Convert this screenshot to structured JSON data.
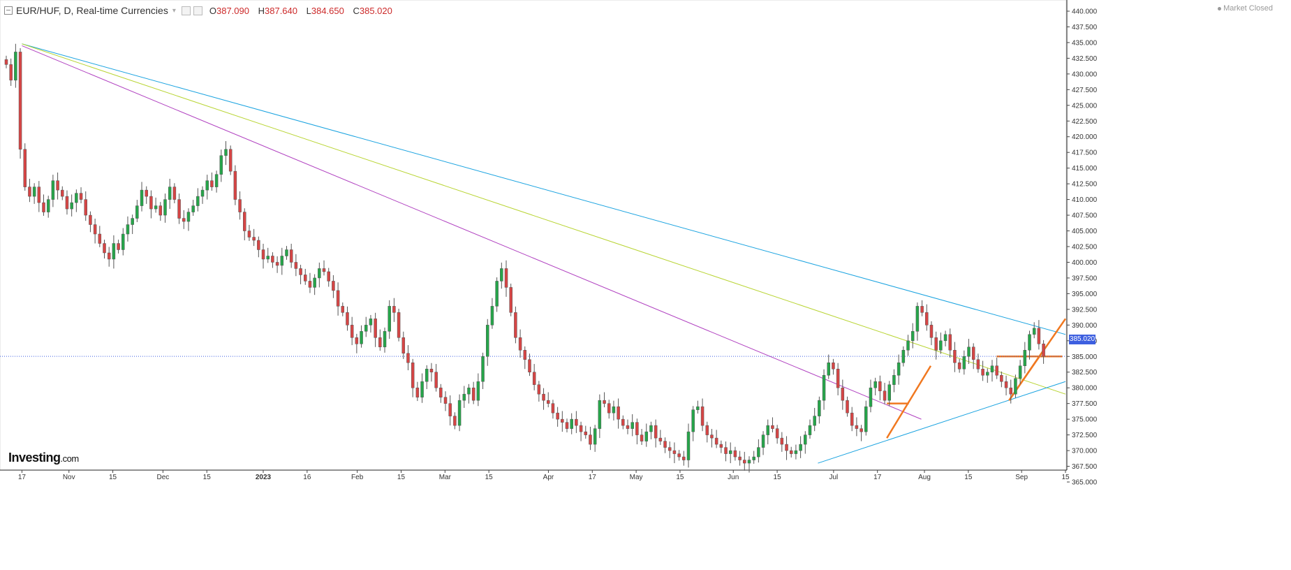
{
  "header": {
    "title": "EUR/HUF, D, Real-time Currencies",
    "ohlc": [
      {
        "key": "O",
        "value": "387.090"
      },
      {
        "key": "H",
        "value": "387.640"
      },
      {
        "key": "L",
        "value": "384.650"
      },
      {
        "key": "C",
        "value": "385.020"
      }
    ],
    "status": "Market Closed"
  },
  "brand": {
    "name": "Investing",
    "suffix": ".com"
  },
  "colors": {
    "up": "#26a54a",
    "down": "#d64545",
    "blue_line": "#1aa3e0",
    "yellow_line": "#b8d432",
    "purple_line": "#b040c0",
    "orange": "#f07820",
    "last_price": "#3d5fe0"
  },
  "chart_data": {
    "type": "candlestick",
    "title": "EUR/HUF, D, Real-time Currencies",
    "ylim": [
      365.0,
      440.0
    ],
    "y_ticks": [
      "365.000",
      "367.500",
      "370.000",
      "372.500",
      "375.000",
      "377.500",
      "380.000",
      "382.500",
      "385.000",
      "387.500",
      "390.000",
      "392.500",
      "395.000",
      "397.500",
      "400.000",
      "402.500",
      "405.000",
      "407.500",
      "410.000",
      "412.500",
      "415.000",
      "417.500",
      "420.000",
      "422.500",
      "425.000",
      "427.500",
      "430.000",
      "432.500",
      "435.000",
      "437.500",
      "440.000"
    ],
    "x_ticks": [
      {
        "label": "17",
        "date": "2022-10-17"
      },
      {
        "label": "Nov",
        "date": "2022-11-01"
      },
      {
        "label": "15",
        "date": "2022-11-15"
      },
      {
        "label": "Dec",
        "date": "2022-12-01"
      },
      {
        "label": "15",
        "date": "2022-12-15"
      },
      {
        "label": "2023",
        "date": "2023-01-02"
      },
      {
        "label": "16",
        "date": "2023-01-16"
      },
      {
        "label": "Feb",
        "date": "2023-02-01"
      },
      {
        "label": "15",
        "date": "2023-02-15"
      },
      {
        "label": "Mar",
        "date": "2023-03-01"
      },
      {
        "label": "15",
        "date": "2023-03-15"
      },
      {
        "label": "Apr",
        "date": "2023-04-03"
      },
      {
        "label": "17",
        "date": "2023-04-17"
      },
      {
        "label": "May",
        "date": "2023-05-01"
      },
      {
        "label": "15",
        "date": "2023-05-15"
      },
      {
        "label": "Jun",
        "date": "2023-06-01"
      },
      {
        "label": "15",
        "date": "2023-06-15"
      },
      {
        "label": "Jul",
        "date": "2023-07-03"
      },
      {
        "label": "17",
        "date": "2023-07-17"
      },
      {
        "label": "Aug",
        "date": "2023-08-01"
      },
      {
        "label": "15",
        "date": "2023-08-15"
      },
      {
        "label": "Sep",
        "date": "2023-09-01"
      },
      {
        "label": "15",
        "date": "2023-09-15"
      }
    ],
    "last_price": 385.02,
    "last_price_label": "385.020",
    "candles_note": "daily OHLC closes estimated from chart",
    "closes": [
      431.5,
      429.0,
      433.5,
      418.0,
      412.0,
      410.5,
      412.0,
      409.5,
      408.0,
      410.0,
      413.0,
      411.5,
      410.5,
      408.5,
      409.5,
      411.0,
      410.0,
      407.5,
      406.0,
      404.5,
      403.0,
      401.5,
      400.5,
      403.0,
      402.0,
      404.5,
      406.0,
      407.0,
      409.0,
      411.5,
      410.5,
      408.5,
      409.0,
      407.5,
      410.0,
      412.0,
      410.0,
      407.0,
      406.5,
      408.0,
      409.0,
      410.5,
      411.5,
      413.0,
      412.0,
      414.0,
      417.0,
      418.0,
      414.5,
      410.0,
      408.0,
      405.0,
      404.0,
      403.5,
      402.0,
      400.5,
      401.0,
      400.0,
      399.5,
      401.0,
      402.0,
      400.0,
      399.0,
      398.0,
      397.0,
      396.0,
      397.5,
      399.0,
      398.5,
      397.0,
      395.5,
      393.0,
      392.0,
      390.0,
      388.0,
      387.0,
      389.0,
      390.0,
      391.0,
      388.0,
      386.5,
      389.0,
      393.0,
      392.0,
      388.0,
      385.5,
      384.0,
      380.0,
      378.5,
      381.0,
      383.0,
      382.5,
      380.0,
      378.5,
      377.5,
      375.5,
      374.0,
      378.0,
      379.0,
      380.0,
      378.0,
      381.0,
      385.0,
      390.0,
      393.0,
      397.0,
      399.0,
      396.0,
      392.0,
      388.0,
      386.0,
      384.5,
      382.5,
      380.5,
      379.0,
      378.0,
      377.5,
      376.0,
      375.0,
      374.5,
      373.5,
      375.0,
      374.0,
      373.0,
      372.5,
      371.0,
      373.5,
      378.0,
      377.5,
      376.0,
      377.0,
      375.0,
      374.0,
      373.5,
      374.5,
      372.5,
      371.5,
      373.0,
      374.0,
      372.0,
      371.5,
      370.5,
      370.0,
      369.5,
      369.0,
      368.5,
      373.0,
      376.5,
      377.0,
      374.0,
      372.5,
      372.0,
      371.0,
      370.5,
      369.5,
      370.0,
      369.0,
      368.5,
      368.0,
      368.5,
      369.0,
      370.5,
      372.5,
      374.0,
      373.5,
      372.0,
      371.0,
      370.0,
      369.5,
      370.0,
      371.0,
      372.5,
      374.0,
      375.5,
      378.0,
      382.0,
      384.0,
      383.0,
      380.0,
      378.0,
      376.0,
      374.0,
      373.5,
      373.0,
      377.0,
      380.0,
      381.0,
      379.5,
      378.0,
      380.5,
      382.0,
      384.0,
      386.0,
      387.5,
      389.0,
      393.0,
      392.0,
      390.0,
      388.0,
      386.0,
      387.5,
      388.5,
      386.0,
      384.0,
      383.0,
      385.0,
      386.5,
      384.5,
      383.0,
      382.0,
      382.5,
      383.5,
      382.0,
      381.0,
      380.0,
      379.0,
      381.5,
      383.5,
      386.0,
      388.5,
      389.5,
      387.0,
      385.02
    ]
  }
}
